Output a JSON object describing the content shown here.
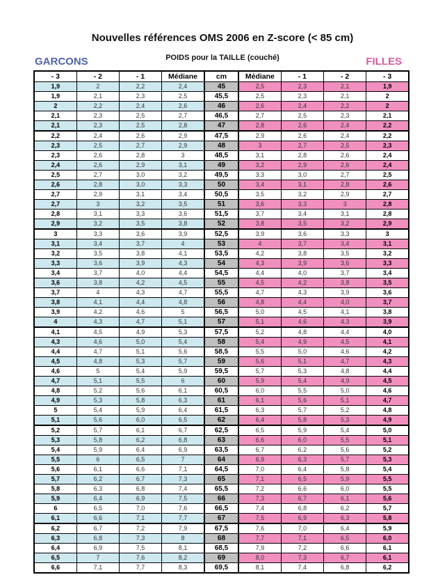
{
  "title": "Nouvelles références OMS 2006 en Z-score (< 85 cm)",
  "subtitle": "POIDS pour la TAILLE (couché)",
  "left_label": "GARCONS",
  "right_label": "FILLES",
  "colors": {
    "garcons": "#4f64a8",
    "filles": "#d45aa3",
    "blue_row": "#cde8ef",
    "pink_row": "#f190bf",
    "cm_row": "#c0c0c0"
  },
  "headers": [
    "- 3",
    "- 2",
    "- 1",
    "Médiane",
    "cm",
    "Médiane",
    "- 1",
    "- 2",
    "- 3"
  ],
  "rows": [
    [
      "1,9",
      "2",
      "2,2",
      "2,4",
      "45",
      "2,5",
      "2,3",
      "2,1",
      "1,9"
    ],
    [
      "1,9",
      "2,1",
      "2,3",
      "2,5",
      "45,5",
      "2,5",
      "2,3",
      "2,1",
      "2"
    ],
    [
      "2",
      "2,2",
      "2,4",
      "2,6",
      "46",
      "2,6",
      "2,4",
      "2,2",
      "2"
    ],
    [
      "2,1",
      "2,3",
      "2,5",
      "2,7",
      "46,5",
      "2,7",
      "2,5",
      "2,3",
      "2,1"
    ],
    [
      "2,1",
      "2,3",
      "2,5",
      "2,8",
      "47",
      "2,8",
      "2,6",
      "2,4",
      "2,2"
    ],
    [
      "2,2",
      "2,4",
      "2,6",
      "2,9",
      "47,5",
      "2,9",
      "2,6",
      "2,4",
      "2,2"
    ],
    [
      "2,3",
      "2,5",
      "2,7",
      "2,9",
      "48",
      "3",
      "2,7",
      "2,5",
      "2,3"
    ],
    [
      "2,3",
      "2,6",
      "2,8",
      "3",
      "48,5",
      "3,1",
      "2,8",
      "2,6",
      "2,4"
    ],
    [
      "2,4",
      "2,6",
      "2,9",
      "3,1",
      "49",
      "3,2",
      "2,9",
      "2,6",
      "2,4"
    ],
    [
      "2,5",
      "2,7",
      "3,0",
      "3,2",
      "49,5",
      "3,3",
      "3,0",
      "2,7",
      "2,5"
    ],
    [
      "2,6",
      "2,8",
      "3,0",
      "3,3",
      "50",
      "3,4",
      "3,1",
      "2,8",
      "2,6"
    ],
    [
      "2,7",
      "2,9",
      "3,1",
      "3,4",
      "50,5",
      "3,5",
      "3,2",
      "2,9",
      "2,7"
    ],
    [
      "2,7",
      "3",
      "3,2",
      "3,5",
      "51",
      "3,6",
      "3,3",
      "3",
      "2,8"
    ],
    [
      "2,8",
      "3,1",
      "3,3",
      "3,6",
      "51,5",
      "3,7",
      "3,4",
      "3,1",
      "2,8"
    ],
    [
      "2,9",
      "3,2",
      "3,5",
      "3,8",
      "52",
      "3,8",
      "3,5",
      "3,2",
      "2,9"
    ],
    [
      "3",
      "3,3",
      "3,6",
      "3,9",
      "52,5",
      "3,9",
      "3,6",
      "3,3",
      "3"
    ],
    [
      "3,1",
      "3,4",
      "3,7",
      "4",
      "53",
      "4",
      "3,7",
      "3,4",
      "3,1"
    ],
    [
      "3,2",
      "3,5",
      "3,8",
      "4,1",
      "53,5",
      "4,2",
      "3,8",
      "3,5",
      "3,2"
    ],
    [
      "3,3",
      "3,6",
      "3,9",
      "4,3",
      "54",
      "4,3",
      "3,9",
      "3,6",
      "3,3"
    ],
    [
      "3,4",
      "3,7",
      "4,0",
      "4,4",
      "54,5",
      "4,4",
      "4,0",
      "3,7",
      "3,4"
    ],
    [
      "3,6",
      "3,8",
      "4,2",
      "4,5",
      "55",
      "4,5",
      "4,2",
      "3,8",
      "3,5"
    ],
    [
      "3,7",
      "4",
      "4,3",
      "4,7",
      "55,5",
      "4,7",
      "4,3",
      "3,9",
      "3,6"
    ],
    [
      "3,8",
      "4,1",
      "4,4",
      "4,8",
      "56",
      "4,8",
      "4,4",
      "4,0",
      "3,7"
    ],
    [
      "3,9",
      "4,2",
      "4,6",
      "5",
      "56,5",
      "5,0",
      "4,5",
      "4,1",
      "3,8"
    ],
    [
      "4",
      "4,3",
      "4,7",
      "5,1",
      "57",
      "5,1",
      "4,6",
      "4,3",
      "3,9"
    ],
    [
      "4,1",
      "4,5",
      "4,9",
      "5,3",
      "57,5",
      "5,2",
      "4,8",
      "4,4",
      "4,0"
    ],
    [
      "4,3",
      "4,6",
      "5,0",
      "5,4",
      "58",
      "5,4",
      "4,9",
      "4,5",
      "4,1"
    ],
    [
      "4,4",
      "4,7",
      "5,1",
      "5,6",
      "58,5",
      "5,5",
      "5,0",
      "4,6",
      "4,2"
    ],
    [
      "4,5",
      "4,8",
      "5,3",
      "5,7",
      "59",
      "5,6",
      "5,1",
      "4,7",
      "4,3"
    ],
    [
      "4,6",
      "5",
      "5,4",
      "5,9",
      "59,5",
      "5,7",
      "5,3",
      "4,8",
      "4,4"
    ],
    [
      "4,7",
      "5,1",
      "5,5",
      "6",
      "60",
      "5,9",
      "5,4",
      "4,9",
      "4,5"
    ],
    [
      "4,8",
      "5,2",
      "5,6",
      "6,1",
      "60,5",
      "6,0",
      "5,5",
      "5,0",
      "4,6"
    ],
    [
      "4,9",
      "5,3",
      "5,8",
      "6,3",
      "61",
      "6,1",
      "5,6",
      "5,1",
      "4,7"
    ],
    [
      "5",
      "5,4",
      "5,9",
      "6,4",
      "61,5",
      "6,3",
      "5,7",
      "5,2",
      "4,8"
    ],
    [
      "5,1",
      "5,6",
      "6,0",
      "6,5",
      "62",
      "6,4",
      "5,8",
      "5,3",
      "4,9"
    ],
    [
      "5,2",
      "5,7",
      "6,1",
      "6,7",
      "62,5",
      "6,5",
      "5,9",
      "5,4",
      "5,0"
    ],
    [
      "5,3",
      "5,8",
      "6,2",
      "6,8",
      "63",
      "6,6",
      "6,0",
      "5,5",
      "5,1"
    ],
    [
      "5,4",
      "5,9",
      "6,4",
      "6,9",
      "63,5",
      "6,7",
      "6,2",
      "5,6",
      "5,2"
    ],
    [
      "5,5",
      "6",
      "6,5",
      "7",
      "64",
      "6,9",
      "6,3",
      "5,7",
      "5,3"
    ],
    [
      "5,6",
      "6,1",
      "6,6",
      "7,1",
      "64,5",
      "7,0",
      "6,4",
      "5,8",
      "5,4"
    ],
    [
      "5,7",
      "6,2",
      "6,7",
      "7,3",
      "65",
      "7,1",
      "6,5",
      "5,9",
      "5,5"
    ],
    [
      "5,8",
      "6,3",
      "6,8",
      "7,4",
      "65,5",
      "7,2",
      "6,6",
      "6,0",
      "5,5"
    ],
    [
      "5,9",
      "6,4",
      "6,9",
      "7,5",
      "66",
      "7,3",
      "6,7",
      "6,1",
      "5,6"
    ],
    [
      "6",
      "6,5",
      "7,0",
      "7,6",
      "66,5",
      "7,4",
      "6,8",
      "6,2",
      "5,7"
    ],
    [
      "6,1",
      "6,6",
      "7,1",
      "7,7",
      "67",
      "7,5",
      "6,9",
      "6,3",
      "5,8"
    ],
    [
      "6,2",
      "6,7",
      "7,2",
      "7,9",
      "67,5",
      "7,6",
      "7,0",
      "6,4",
      "5,9"
    ],
    [
      "6,3",
      "6,8",
      "7,3",
      "8",
      "68",
      "7,7",
      "7,1",
      "6,5",
      "6,0"
    ],
    [
      "6,4",
      "6,9",
      "7,5",
      "8,1",
      "68,5",
      "7,9",
      "7,2",
      "6,6",
      "6,1"
    ],
    [
      "6,5",
      "7",
      "7,6",
      "8,2",
      "69",
      "8,0",
      "7,3",
      "6,7",
      "6,1"
    ],
    [
      "6,6",
      "7,1",
      "7,7",
      "8,3",
      "69,5",
      "8,1",
      "7,4",
      "6,8",
      "6,2"
    ]
  ]
}
